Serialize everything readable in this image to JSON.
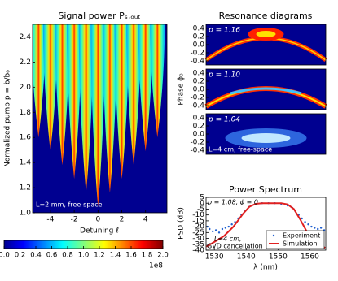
{
  "chart_data": [
    {
      "type": "heatmap",
      "title": "Signal power Pₛ,ₒᵤₜ",
      "xlabel": "Detuning ℓ",
      "ylabel": "Normalized pump p = b/b₀",
      "xlim": [
        -5.5,
        5.8
      ],
      "ylim": [
        1.0,
        2.5
      ],
      "xticks": [
        -4,
        -2,
        0,
        2,
        4
      ],
      "yticks": [
        {
          "value": 1.0,
          "label": "1.0"
        },
        1.2,
        1.4,
        1.6,
        1.8,
        {
          "value": 2.0,
          "label": "2.0"
        },
        2.2,
        2.4
      ],
      "annotation": "L=2 mm, free-space",
      "colorbar": {
        "lim": [
          0,
          2
        ],
        "ticks": [
          {
            "value": 0,
            "label": "0.0"
          },
          0.2,
          0.4,
          0.6,
          0.8,
          {
            "value": 1,
            "label": "1.0"
          },
          1.2,
          1.4,
          1.6,
          1.8,
          {
            "value": 2,
            "label": "2.0"
          }
        ],
        "multiplier": "1e8"
      }
    },
    {
      "type": "heatmap",
      "title": "Resonance diagrams",
      "ylabel": "Phase ϕ₀",
      "ylim": [
        -0.5,
        0.5
      ],
      "yticks": [
        0.4,
        0.2,
        {
          "value": 0,
          "label": "0.0"
        },
        -0.2,
        -0.4
      ],
      "panels": [
        {
          "annotation": "p = 1.16"
        },
        {
          "annotation": "p = 1.10"
        },
        {
          "annotation": "p = 1.04",
          "note": "L=4 cm, free-space"
        }
      ]
    },
    {
      "type": "line",
      "title": "Power Spectrum",
      "xlabel": "λ (nm)",
      "ylabel": "PSD (dB)",
      "xlim": [
        1527.4,
        1565
      ],
      "ylim": [
        -40,
        5
      ],
      "xticks": [
        1530,
        1540,
        1550,
        1560
      ],
      "yticks": [
        5,
        0,
        -5,
        -10,
        -15,
        -20,
        -25,
        -30,
        -35,
        -40
      ],
      "annotations": [
        "p = 1.08, ϕ = 0",
        "L=4 cm,",
        "GVD cancellation"
      ],
      "legend": "lower right",
      "series": [
        {
          "name": "Experiment",
          "color": "#1f5fd0",
          "style": "dots",
          "x": [
            1527.8,
            1528.5,
            1529.5,
            1530.5,
            1531.5,
            1532.5,
            1533.5,
            1534.5,
            1535.5,
            1536.5,
            1537.5,
            1538.5,
            1539.5,
            1541,
            1543,
            1545,
            1547,
            1549,
            1551,
            1553,
            1554.5,
            1555.5,
            1556.5,
            1557.5,
            1558.5,
            1559.5,
            1560.5,
            1561.5,
            1562.5,
            1563.5,
            1564.5
          ],
          "values": [
            -20,
            -22,
            -24,
            -23,
            -25,
            -22,
            -21,
            -20,
            -18,
            -16,
            -13,
            -10,
            -7,
            -3,
            -1,
            0,
            0,
            0,
            -0.5,
            -2,
            -4,
            -7,
            -10,
            -13,
            -16,
            -18,
            -20,
            -21,
            -22,
            -21,
            -23
          ]
        },
        {
          "name": "Simulation",
          "color": "#e02020",
          "style": "line",
          "x": [
            1527.5,
            1530,
            1533,
            1536,
            1539,
            1541,
            1543,
            1545,
            1547,
            1549,
            1551,
            1553,
            1555,
            1557,
            1559,
            1562,
            1564.8
          ],
          "values": [
            -37,
            -33,
            -28,
            -20,
            -9,
            -3,
            -0.5,
            0,
            0,
            0,
            0,
            -1,
            -5,
            -14,
            -24,
            -34,
            -38
          ]
        }
      ]
    }
  ]
}
